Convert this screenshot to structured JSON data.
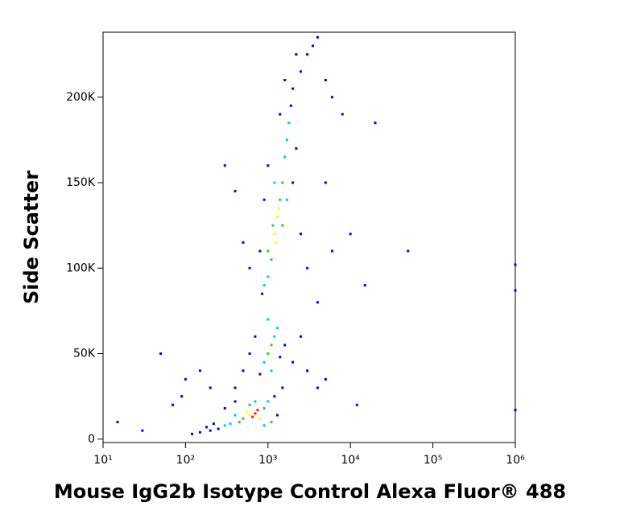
{
  "chart_data": {
    "type": "scatter",
    "x_label": "Mouse IgG2b Isotype Control Alexa Fluor® 488",
    "y_label": "Side Scatter",
    "x_log": true,
    "xlim": [
      10,
      1000000
    ],
    "ylim": [
      -2000,
      238000
    ],
    "xticks": [
      {
        "value": 10,
        "label": "10¹"
      },
      {
        "value": 100,
        "label": "10²"
      },
      {
        "value": 1000,
        "label": "10³"
      },
      {
        "value": 10000,
        "label": "10⁴"
      },
      {
        "value": 100000,
        "label": "10⁵"
      },
      {
        "value": 1000000,
        "label": "10⁶"
      }
    ],
    "yticks": [
      0,
      {
        "value": 50000,
        "label": "50K"
      },
      {
        "value": 100000,
        "label": "100K"
      },
      {
        "value": 150000,
        "label": "150K"
      },
      {
        "value": 200000,
        "label": "200K"
      }
    ],
    "x": [
      700,
      650,
      750,
      600,
      800,
      550,
      500,
      900,
      450,
      400,
      350,
      1000,
      300,
      250,
      200,
      150,
      120,
      1200,
      1500,
      900,
      1100,
      1300,
      220,
      180,
      600,
      700,
      400,
      300,
      15,
      30,
      70,
      50,
      100,
      150,
      200,
      90,
      1100,
      1000,
      1200,
      900,
      1300,
      1100,
      800,
      1400,
      1000,
      700,
      1600,
      2000,
      600,
      500,
      400,
      3000,
      2500,
      4000,
      5000,
      12000,
      1200,
      1300,
      1250,
      1400,
      1100,
      1500,
      1000,
      1600,
      1150,
      1350,
      1700,
      1800,
      1900,
      2000,
      900,
      850,
      1000,
      1500,
      1700,
      1200,
      2000,
      2500,
      3000,
      800,
      900,
      1000,
      2200,
      1400,
      2500,
      3000,
      3500,
      4000,
      2200,
      1600,
      600,
      500,
      400,
      300,
      5000,
      6000,
      8000,
      10000,
      15000,
      20000,
      50000,
      5000,
      4000,
      6000,
      1000000,
      1000000,
      1000000
    ],
    "values": [
      15000,
      13000,
      17000,
      14000,
      12000,
      16000,
      12000,
      18000,
      10000,
      14000,
      9000,
      22000,
      8000,
      6000,
      5000,
      4000,
      3000,
      25000,
      30000,
      8000,
      10000,
      14000,
      9000,
      7000,
      20000,
      22000,
      22000,
      18000,
      10000,
      5000,
      20000,
      50000,
      35000,
      40000,
      30000,
      25000,
      55000,
      50000,
      60000,
      45000,
      65000,
      40000,
      38000,
      48000,
      70000,
      60000,
      55000,
      45000,
      50000,
      40000,
      30000,
      40000,
      60000,
      30000,
      35000,
      20000,
      120000,
      130000,
      115000,
      140000,
      105000,
      150000,
      95000,
      165000,
      125000,
      135000,
      175000,
      185000,
      195000,
      205000,
      90000,
      85000,
      110000,
      125000,
      140000,
      150000,
      150000,
      120000,
      100000,
      110000,
      140000,
      160000,
      170000,
      190000,
      215000,
      225000,
      230000,
      235000,
      225000,
      210000,
      100000,
      115000,
      145000,
      160000,
      210000,
      200000,
      190000,
      120000,
      90000,
      185000,
      110000,
      150000,
      80000,
      110000,
      102000,
      17000,
      87000
    ],
    "colors": [
      "#ff2000",
      "#ff2000",
      "#ff2000",
      "#ffff00",
      "#ffff00",
      "#ffff00",
      "#30d030",
      "#30d030",
      "#30d030",
      "#00c8ff",
      "#00c8ff",
      "#00c8ff",
      "#00c8ff",
      "#0000ff",
      "#0000ff",
      "#0000ff",
      "#0000ff",
      "#0000ff",
      "#0000ff",
      "#00c8ff",
      "#30d030",
      "#0000ff",
      "#0000ff",
      "#0000ff",
      "#30d030",
      "#00c8ff",
      "#0000ff",
      "#0000ff",
      "#0000ff",
      "#0000ff",
      "#0000ff",
      "#0000ff",
      "#0000ff",
      "#0000ff",
      "#0000ff",
      "#0000ff",
      "#30d030",
      "#30d030",
      "#00c8ff",
      "#00c8ff",
      "#00c8ff",
      "#00c8ff",
      "#0000ff",
      "#0000ff",
      "#00c8ff",
      "#0000ff",
      "#0000ff",
      "#0000ff",
      "#0000ff",
      "#0000ff",
      "#0000ff",
      "#0000ff",
      "#0000ff",
      "#0000ff",
      "#0000ff",
      "#0000ff",
      "#ffff00",
      "#ffff00",
      "#ffff00",
      "#30d030",
      "#30d030",
      "#30d030",
      "#00c8ff",
      "#00c8ff",
      "#30d030",
      "#ffff00",
      "#00c8ff",
      "#00c8ff",
      "#0000ff",
      "#0000ff",
      "#00c8ff",
      "#0000ff",
      "#30d030",
      "#30d030",
      "#00c8ff",
      "#00c8ff",
      "#0000ff",
      "#0000ff",
      "#0000ff",
      "#0000ff",
      "#0000ff",
      "#0000ff",
      "#0000ff",
      "#0000ff",
      "#0000ff",
      "#0000ff",
      "#0000ff",
      "#0000ff",
      "#0000ff",
      "#0000ff",
      "#0000ff",
      "#0000ff",
      "#0000ff",
      "#0000ff",
      "#0000ff",
      "#0000ff",
      "#0000ff",
      "#0000ff",
      "#0000ff",
      "#0000ff",
      "#0000ff",
      "#0000ff",
      "#0000ff",
      "#0000ff",
      "#0000ff",
      "#0000ff",
      "#0000ff"
    ]
  }
}
